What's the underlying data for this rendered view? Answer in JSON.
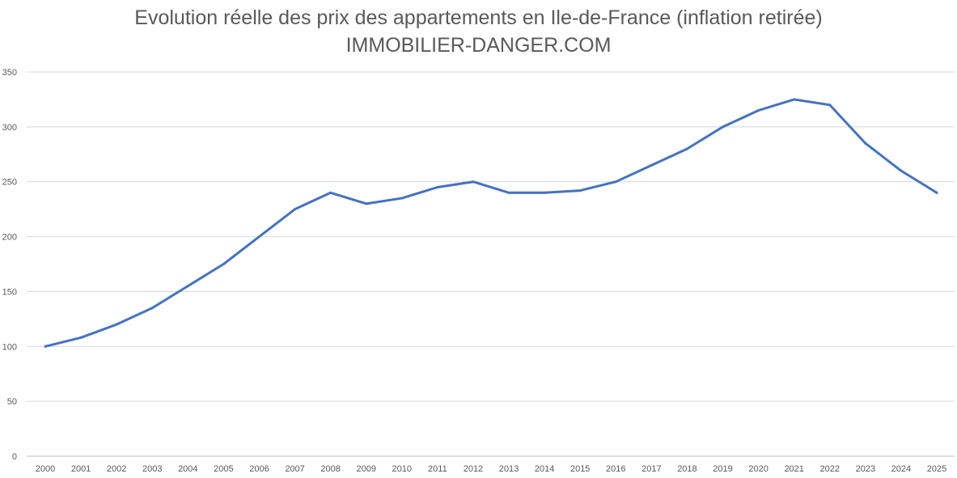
{
  "chart_data": {
    "type": "line",
    "title": "Evolution réelle des prix des appartements en Ile-de-France (inflation retirée)",
    "subtitle": "IMMOBILIER-DANGER.COM",
    "xlabel": "",
    "ylabel": "",
    "ylim": [
      0,
      350
    ],
    "yticks": [
      0,
      50,
      100,
      150,
      200,
      250,
      300,
      350
    ],
    "grid": true,
    "legend": "none",
    "categories": [
      "2000",
      "2001",
      "2002",
      "2003",
      "2004",
      "2005",
      "2006",
      "2007",
      "2008",
      "2009",
      "2010",
      "2011",
      "2012",
      "2013",
      "2014",
      "2015",
      "2016",
      "2017",
      "2018",
      "2019",
      "2020",
      "2021",
      "2022",
      "2023",
      "2024",
      "2025"
    ],
    "series": [
      {
        "color": "#4472C4",
        "values": [
          100,
          108,
          120,
          135,
          155,
          175,
          200,
          225,
          240,
          230,
          235,
          245,
          250,
          240,
          240,
          242,
          250,
          265,
          280,
          300,
          315,
          325,
          320,
          285,
          260,
          240
        ]
      }
    ]
  }
}
